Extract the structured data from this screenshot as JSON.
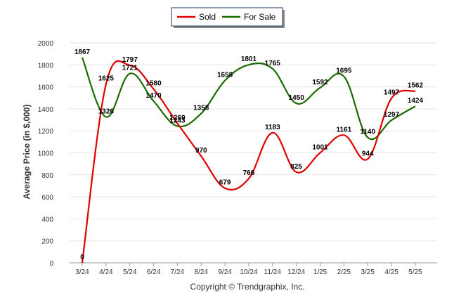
{
  "chart_data": {
    "type": "line",
    "categories": [
      "3/24",
      "4/24",
      "5/24",
      "6/24",
      "7/24",
      "8/24",
      "9/24",
      "10/24",
      "11/24",
      "12/24",
      "1/25",
      "2/25",
      "3/25",
      "4/25",
      "5/25"
    ],
    "series": [
      {
        "name": "Sold",
        "color": "#e00000",
        "values": [
          0,
          1625,
          1797,
          1580,
          1269,
          970,
          679,
          766,
          1183,
          825,
          1001,
          1161,
          944,
          1497,
          1562
        ]
      },
      {
        "name": "For Sale",
        "color": "#1a6b00",
        "values": [
          1867,
          1326,
          1721,
          1470,
          1243,
          1358,
          1658,
          1801,
          1765,
          1450,
          1592,
          1695,
          1140,
          1297,
          1424
        ]
      }
    ],
    "ylabel": "Average Price (in $,000)",
    "xlabel": "",
    "ylim": [
      0,
      2000
    ],
    "yticks": [
      0,
      200,
      400,
      600,
      800,
      1000,
      1200,
      1400,
      1600,
      1800,
      2000
    ],
    "legend_position": "top-center",
    "grid": true
  },
  "footer": {
    "text": "Copyright © Trendgraphix, Inc."
  }
}
